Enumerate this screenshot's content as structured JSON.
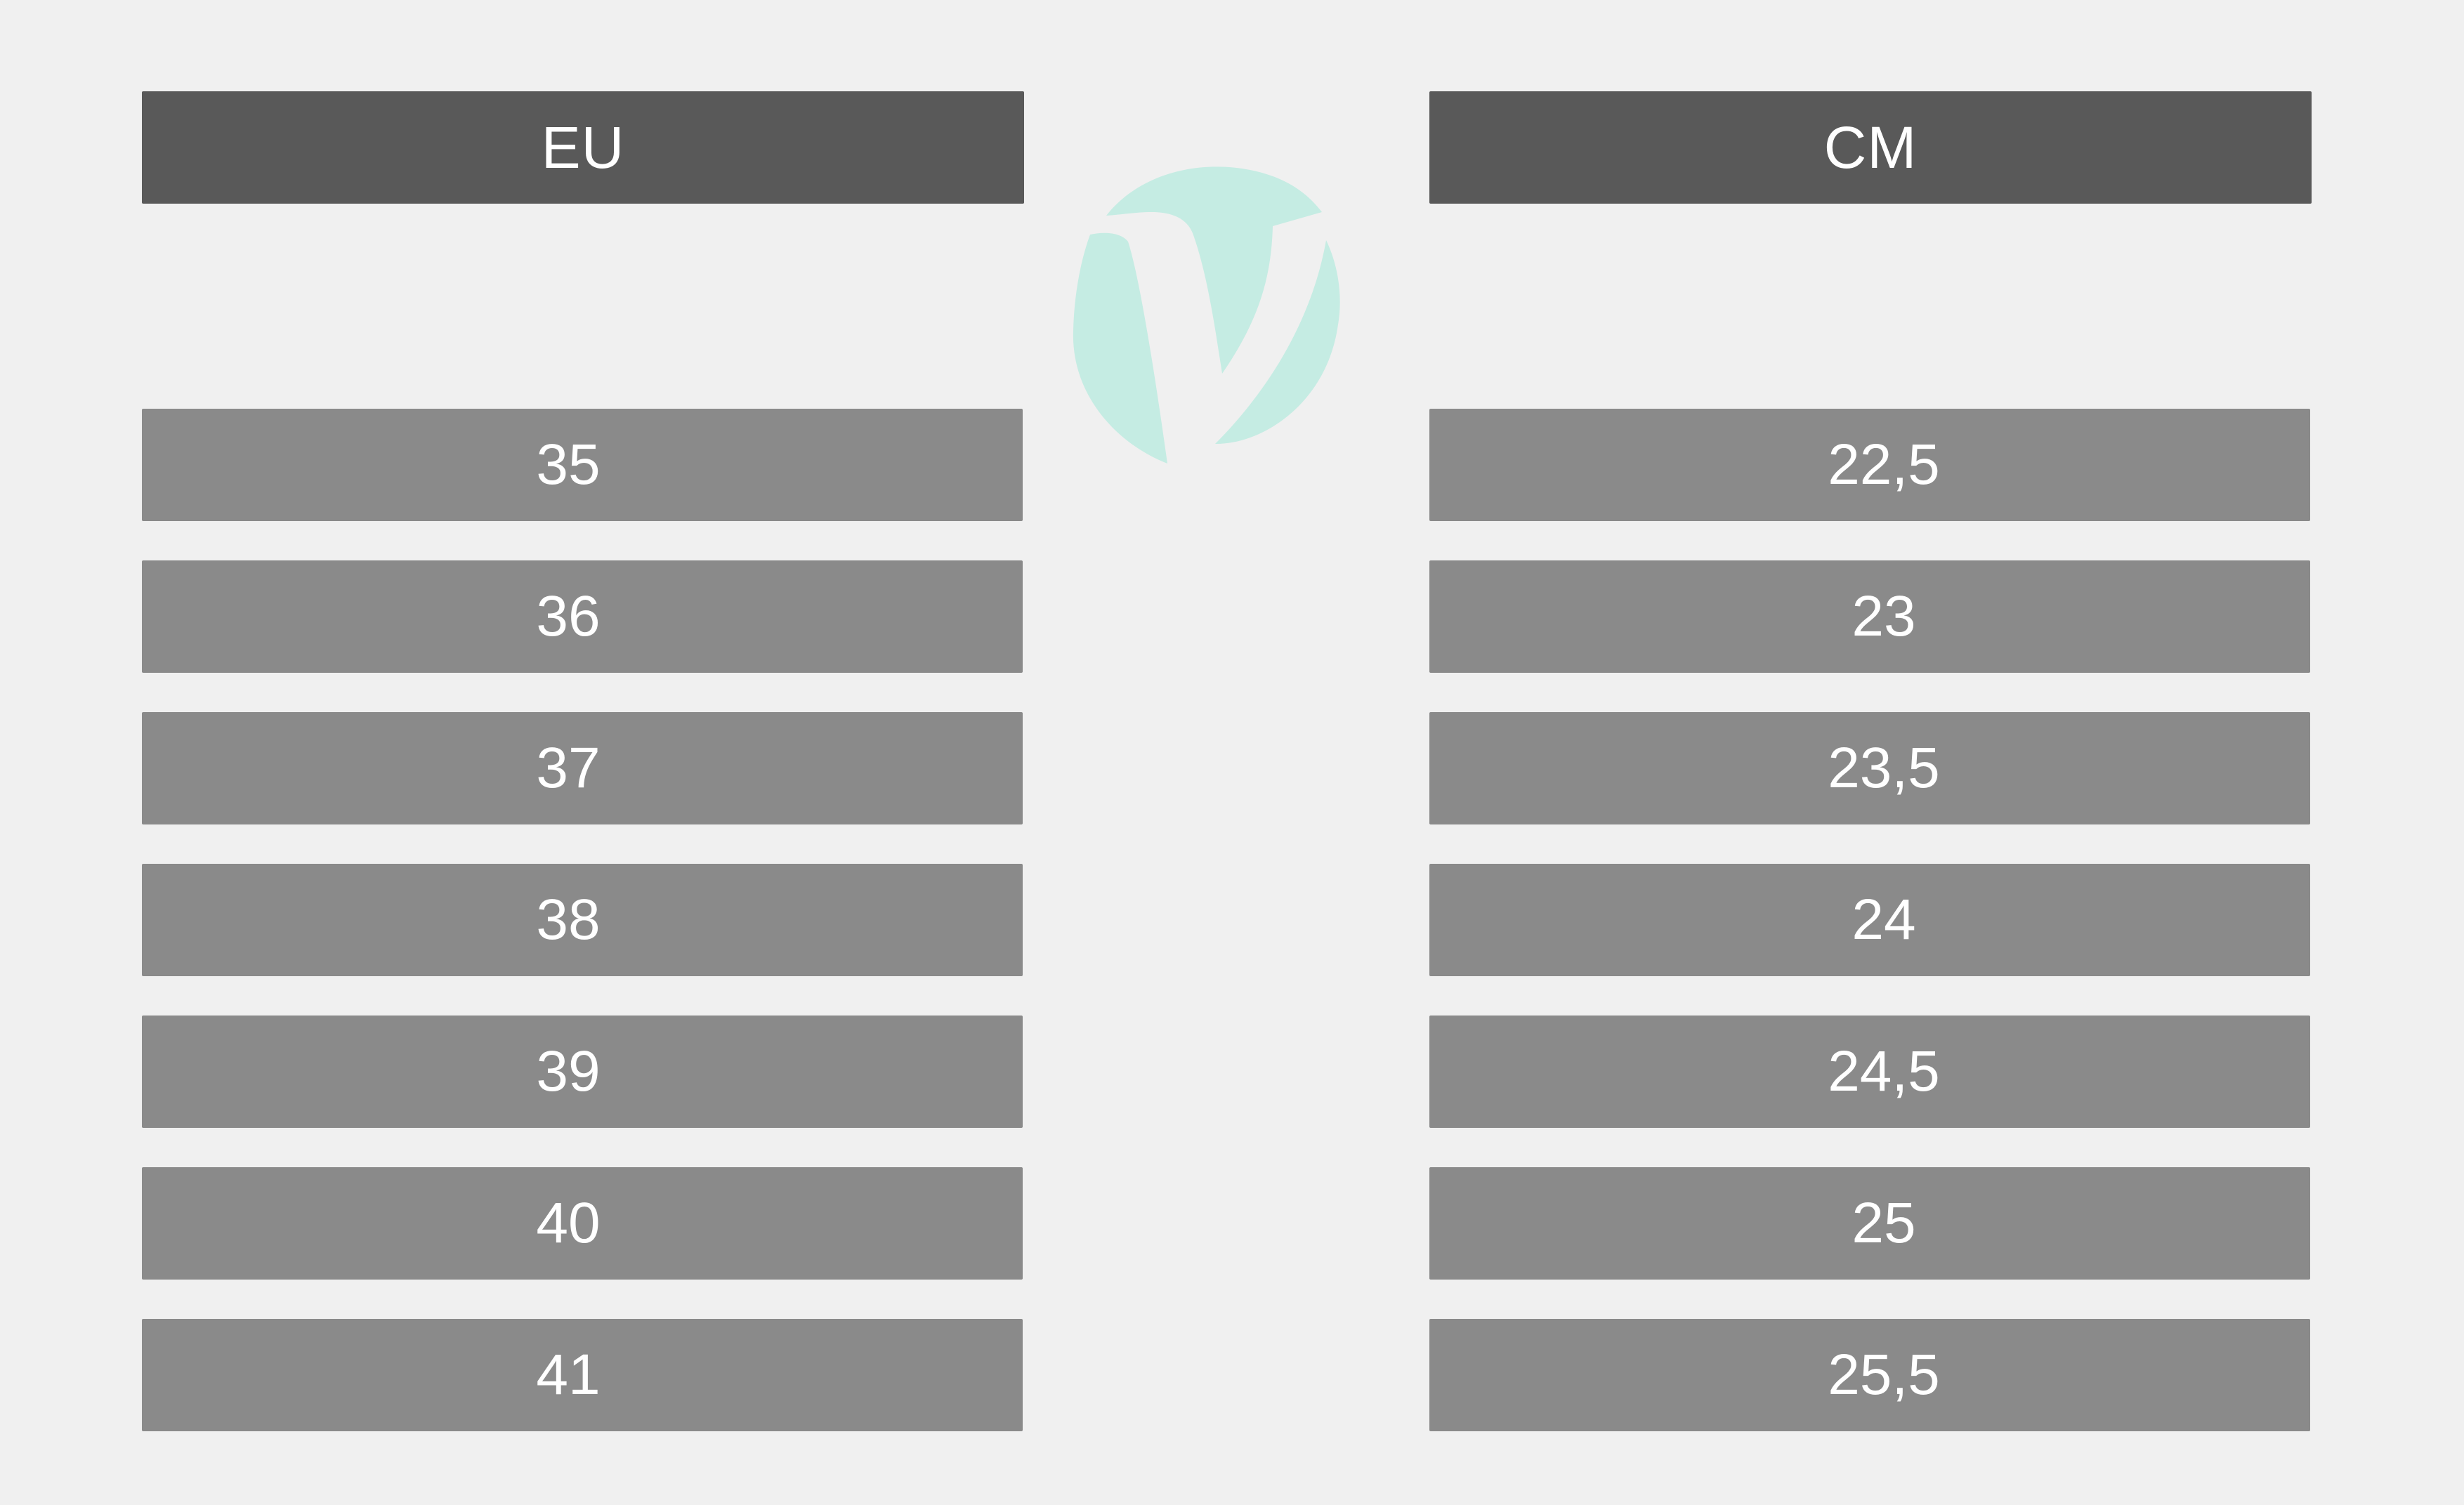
{
  "columns": [
    {
      "header": "EU",
      "values": [
        "35",
        "36",
        "37",
        "38",
        "39",
        "40",
        "41"
      ]
    },
    {
      "header": "CM",
      "values": [
        "22,5",
        "23",
        "23,5",
        "24",
        "24,5",
        "25",
        "25,5"
      ]
    }
  ],
  "colors": {
    "background": "#f0f0f0",
    "header": "#595959",
    "cell": "#8a8a8a",
    "text": "#ffffff",
    "logo": "#c5ece3"
  },
  "logo": {
    "icon": "v-monogram-logo"
  }
}
